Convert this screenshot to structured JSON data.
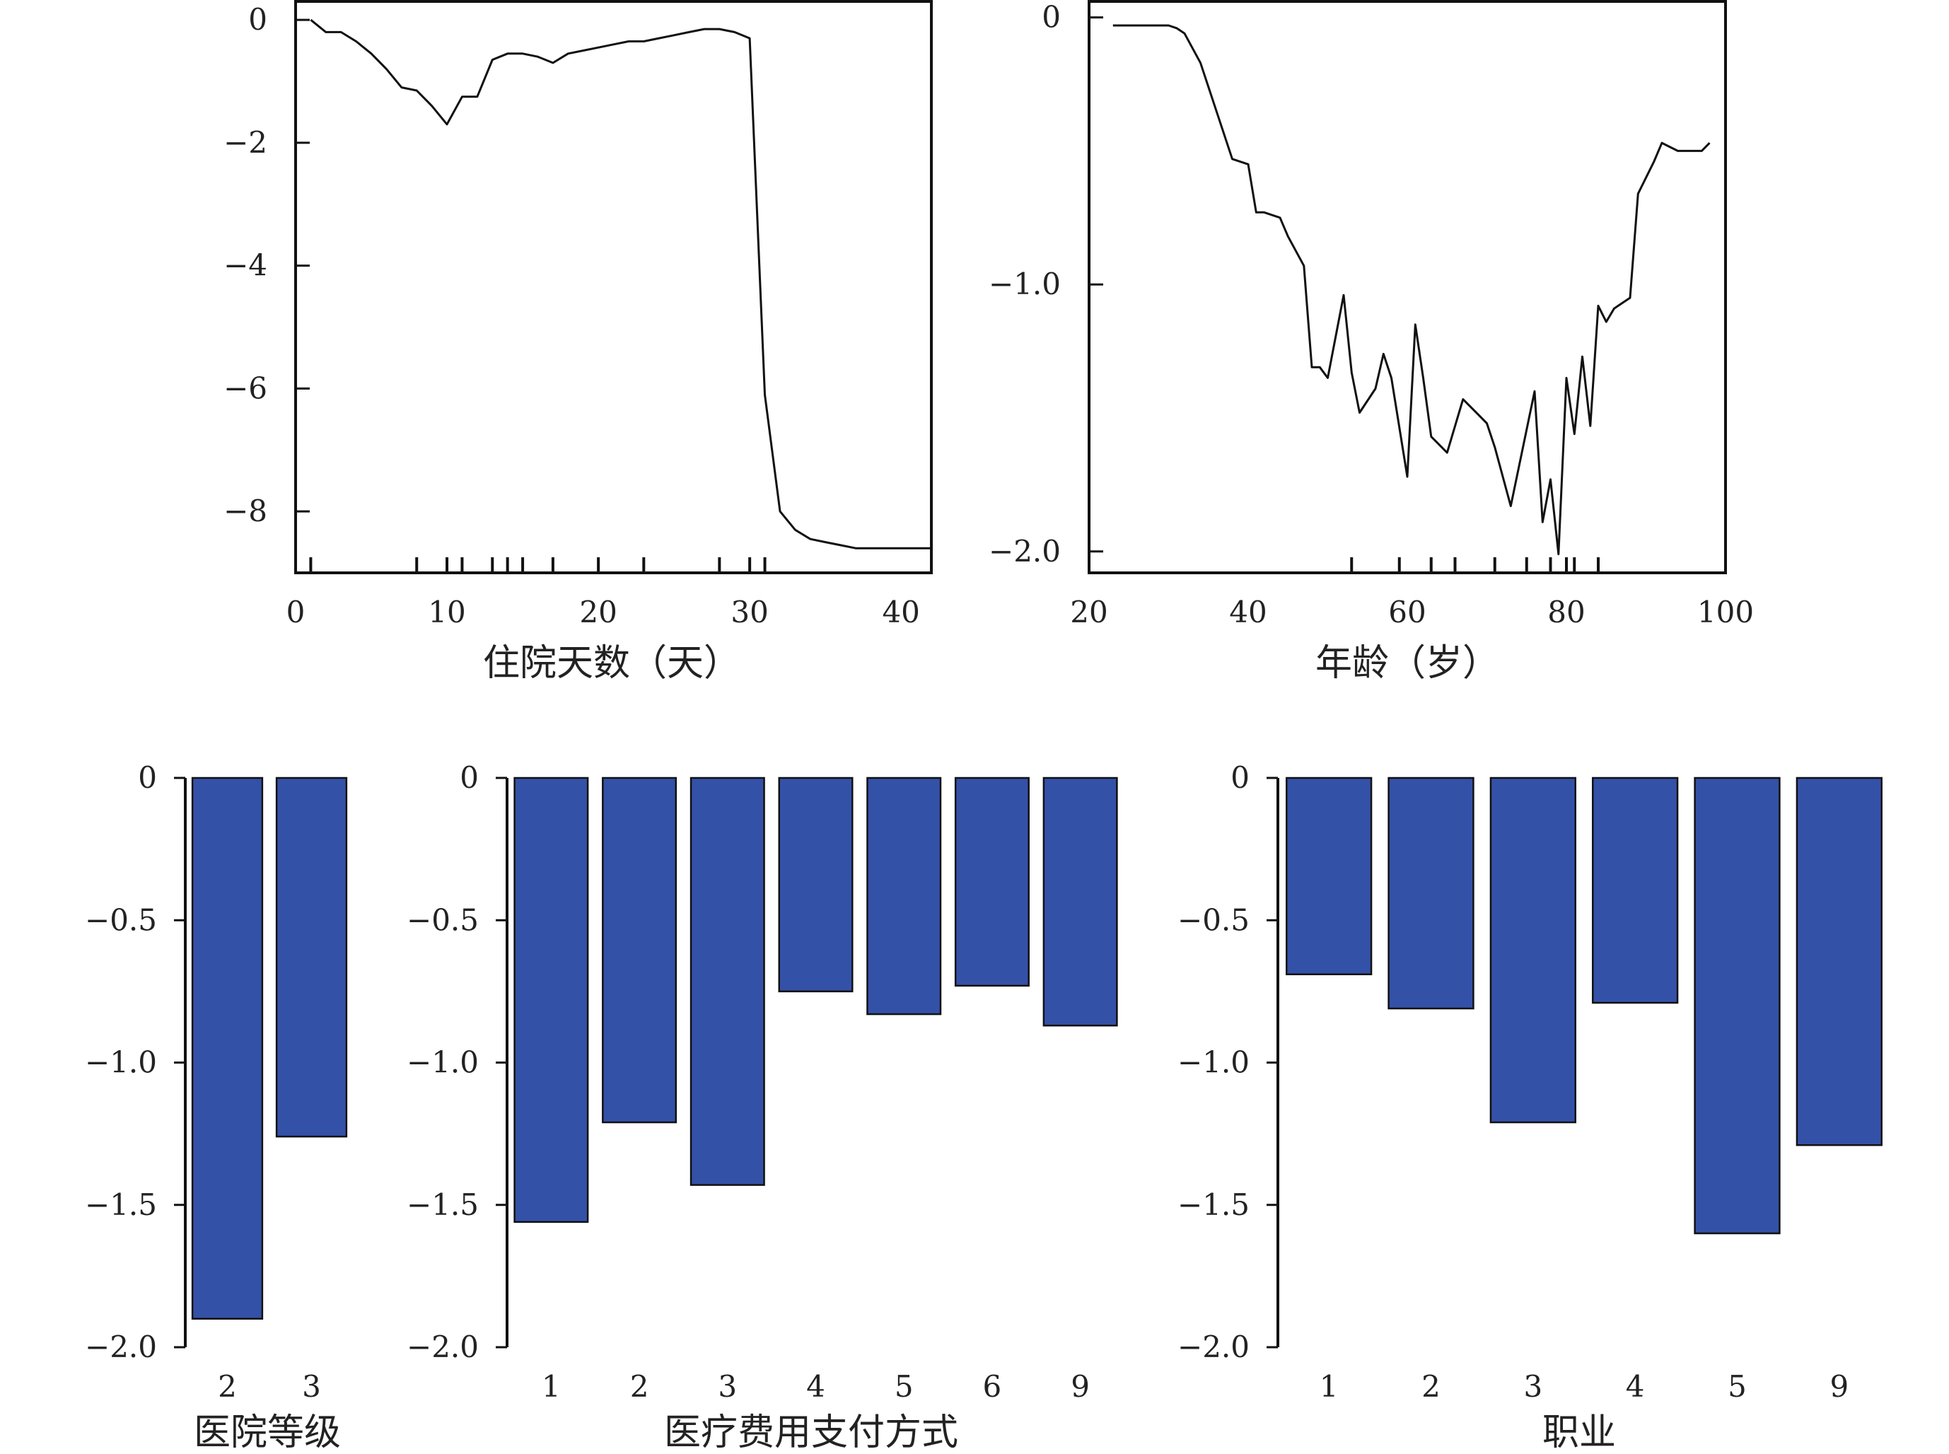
{
  "figure": {
    "chart_data": [
      {
        "id": "chart-los",
        "type": "line",
        "title": "",
        "xlabel": "住院天数（天）",
        "ylabel": "",
        "xlim": [
          0,
          42
        ],
        "ylim": [
          -9,
          0.3
        ],
        "xticks": [
          0,
          10,
          20,
          30,
          40
        ],
        "yticks": [
          0,
          -2,
          -4,
          -6,
          -8
        ],
        "ytick_labels": [
          "0",
          "−2",
          "−4",
          "−6",
          "−8"
        ],
        "rug": [
          1,
          8,
          10,
          11,
          13,
          14,
          15,
          17,
          20,
          23,
          28,
          30,
          31
        ],
        "x": [
          1,
          2,
          3,
          4,
          5,
          6,
          7,
          8,
          9,
          10,
          11,
          12,
          13,
          14,
          15,
          16,
          17,
          18,
          19,
          20,
          21,
          22,
          23,
          24,
          25,
          26,
          27,
          28,
          29,
          30,
          31,
          32,
          33,
          34,
          35,
          36,
          37,
          38,
          40,
          42
        ],
        "y": [
          0,
          -0.2,
          -0.2,
          -0.35,
          -0.55,
          -0.8,
          -1.1,
          -1.15,
          -1.4,
          -1.7,
          -1.25,
          -1.25,
          -0.65,
          -0.55,
          -0.55,
          -0.6,
          -0.7,
          -0.55,
          -0.5,
          -0.45,
          -0.4,
          -0.35,
          -0.35,
          -0.3,
          -0.25,
          -0.2,
          -0.15,
          -0.15,
          -0.2,
          -0.3,
          -6.1,
          -8.0,
          -8.3,
          -8.45,
          -8.5,
          -8.55,
          -8.6,
          -8.6,
          -8.6,
          -8.6
        ]
      },
      {
        "id": "chart-age",
        "type": "line",
        "title": "",
        "xlabel": "年龄（岁）",
        "ylabel": "",
        "xlim": [
          20,
          100
        ],
        "ylim": [
          -2.08,
          0.06
        ],
        "xticks": [
          20,
          40,
          60,
          80,
          100
        ],
        "yticks": [
          0,
          -1,
          -2
        ],
        "ytick_labels": [
          "0",
          "−1.0",
          "−2.0"
        ],
        "rug": [
          53,
          59,
          63,
          66,
          71,
          75,
          78,
          80,
          81,
          84
        ],
        "x": [
          23,
          30,
          31,
          32,
          34,
          36,
          38,
          40,
          41,
          42,
          44,
          45,
          47,
          48,
          49,
          50,
          52,
          53,
          54,
          56,
          57,
          58,
          60,
          61,
          62,
          63,
          65,
          67,
          69,
          70,
          71,
          73,
          76,
          77,
          78,
          79,
          80,
          81,
          82,
          83,
          84,
          85,
          86,
          88,
          89,
          91,
          92,
          94,
          95,
          96,
          97,
          98
        ],
        "y": [
          -0.03,
          -0.03,
          -0.04,
          -0.06,
          -0.17,
          -0.35,
          -0.53,
          -0.55,
          -0.73,
          -0.73,
          -0.75,
          -0.82,
          -0.93,
          -1.31,
          -1.31,
          -1.35,
          -1.04,
          -1.33,
          -1.48,
          -1.39,
          -1.26,
          -1.35,
          -1.72,
          -1.15,
          -1.35,
          -1.57,
          -1.63,
          -1.43,
          -1.49,
          -1.52,
          -1.61,
          -1.83,
          -1.4,
          -1.89,
          -1.73,
          -2.01,
          -1.35,
          -1.56,
          -1.27,
          -1.53,
          -1.08,
          -1.14,
          -1.09,
          -1.05,
          -0.66,
          -0.54,
          -0.47,
          -0.5,
          -0.5,
          -0.5,
          -0.5,
          -0.47
        ]
      },
      {
        "id": "chart-hospital-level",
        "type": "bar",
        "title": "",
        "xlabel": "医院等级",
        "ylabel": "",
        "ylim": [
          -2,
          0
        ],
        "yticks": [
          0,
          -0.5,
          -1,
          -1.5,
          -2
        ],
        "ytick_labels": [
          "0",
          "−0.5",
          "−1.0",
          "−1.5",
          "−2.0"
        ],
        "categories": [
          "2",
          "3"
        ],
        "values": [
          -1.9,
          -1.26
        ],
        "bar_color": "#3451a8"
      },
      {
        "id": "chart-payment",
        "type": "bar",
        "title": "",
        "xlabel": "医疗费用支付方式",
        "ylabel": "",
        "ylim": [
          -2,
          0
        ],
        "yticks": [
          0,
          -0.5,
          -1,
          -1.5,
          -2
        ],
        "ytick_labels": [
          "0",
          "−0.5",
          "−1.0",
          "−1.5",
          "−2.0"
        ],
        "categories": [
          "1",
          "2",
          "3",
          "4",
          "5",
          "6",
          "9"
        ],
        "values": [
          -1.56,
          -1.21,
          -1.43,
          -0.75,
          -0.83,
          -0.73,
          -0.87
        ],
        "bar_color": "#3451a8"
      },
      {
        "id": "chart-occupation",
        "type": "bar",
        "title": "",
        "xlabel": "职业",
        "ylabel": "",
        "ylim": [
          -2,
          0
        ],
        "yticks": [
          0,
          -0.5,
          -1,
          -1.5,
          -2
        ],
        "ytick_labels": [
          "0",
          "−0.5",
          "−1.0",
          "−1.5",
          "−2.0"
        ],
        "categories": [
          "1",
          "2",
          "3",
          "4",
          "5",
          "9"
        ],
        "values": [
          -0.69,
          -0.81,
          -1.21,
          -0.79,
          -1.6,
          -1.29
        ],
        "bar_color": "#3451a8"
      }
    ]
  }
}
